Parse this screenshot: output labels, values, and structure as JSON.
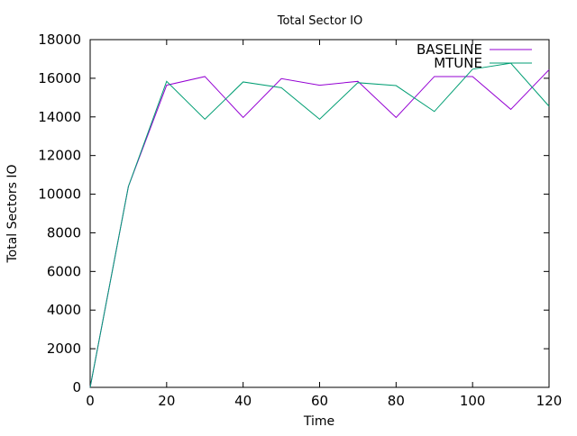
{
  "chart_data": {
    "type": "line",
    "title": "Total Sector IO",
    "xlabel": "Time",
    "ylabel": "Total Sectors IO",
    "xlim": [
      0,
      120
    ],
    "ylim": [
      0,
      18000
    ],
    "xticks": [
      0,
      20,
      40,
      60,
      80,
      100,
      120
    ],
    "yticks": [
      0,
      2000,
      4000,
      6000,
      8000,
      10000,
      12000,
      14000,
      16000,
      18000
    ],
    "grid": false,
    "legend": "top-right",
    "x": [
      0,
      10,
      20,
      30,
      40,
      50,
      60,
      70,
      80,
      90,
      100,
      110,
      120
    ],
    "series": [
      {
        "name": "BASELINE",
        "color": "#9400d3",
        "values": [
          0,
          10400,
          15640,
          16090,
          13970,
          15980,
          15640,
          15840,
          13970,
          16090,
          16090,
          14390,
          16440
        ]
      },
      {
        "name": "MTUNE",
        "color": "#009e73",
        "values": [
          0,
          10400,
          15840,
          13880,
          15810,
          15510,
          13880,
          15770,
          15620,
          14280,
          16470,
          16780,
          14550
        ]
      }
    ]
  }
}
